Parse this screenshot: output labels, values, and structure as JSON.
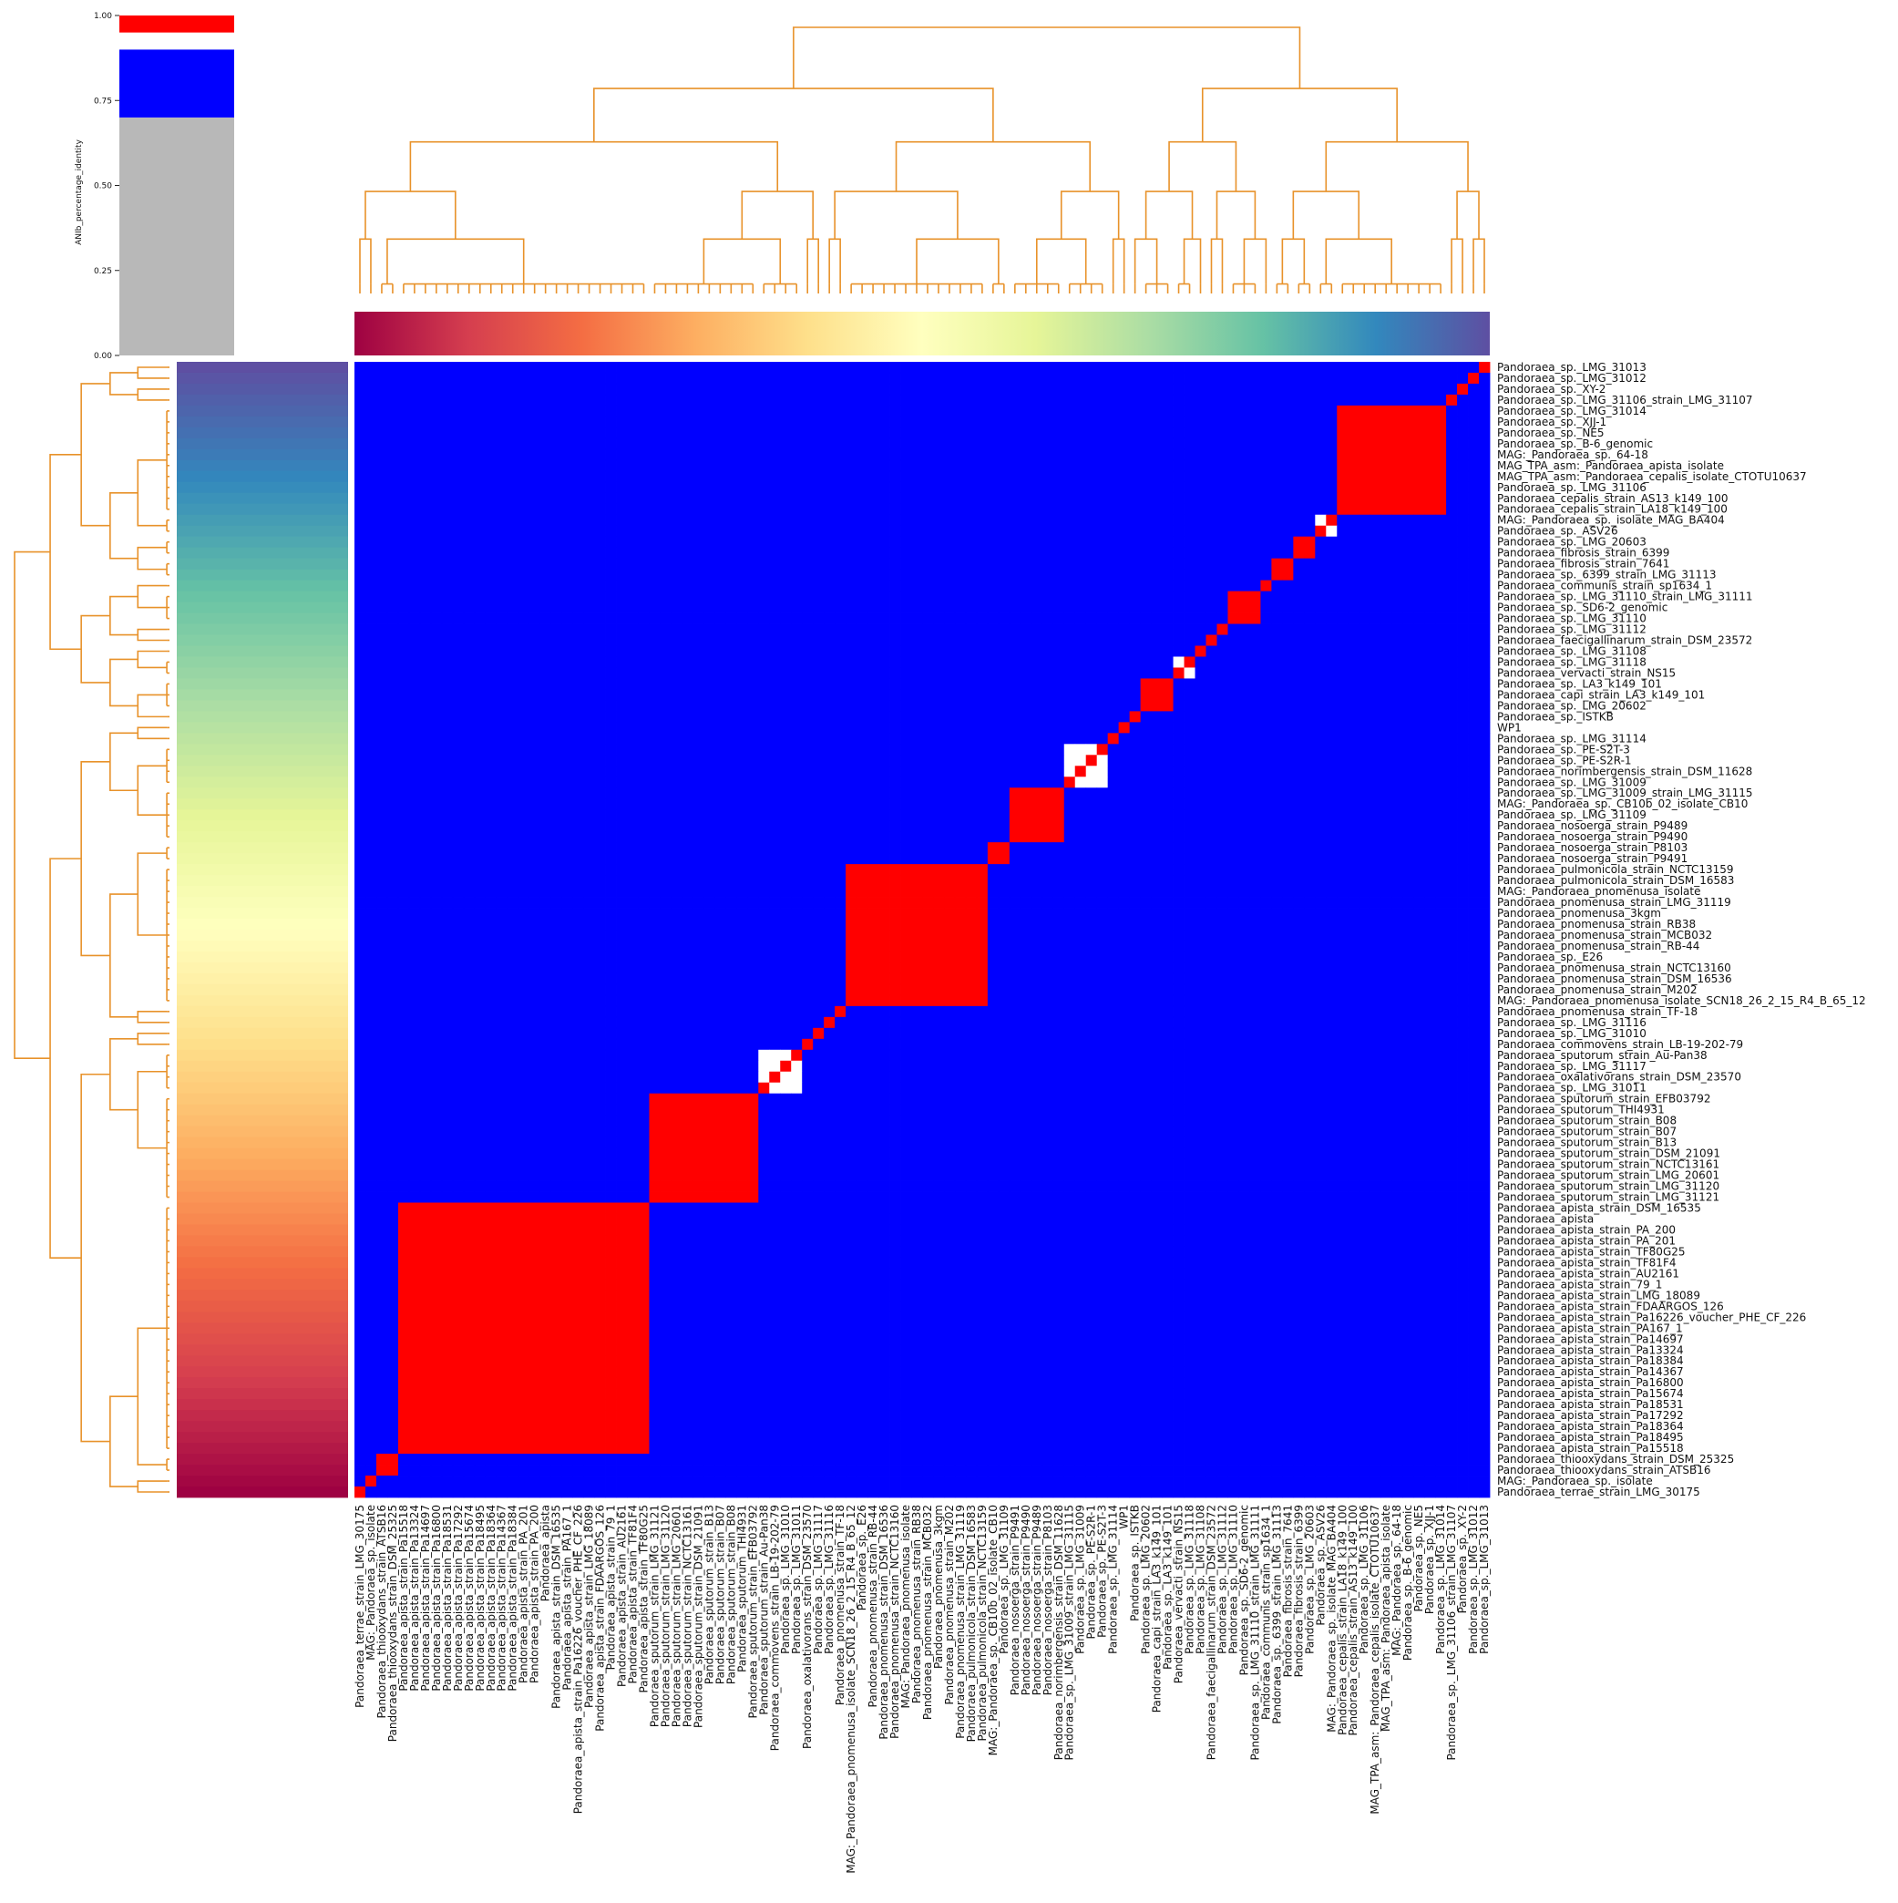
{
  "chart_data": {
    "type": "heatmap",
    "title": "",
    "colorbar": {
      "label": "ANIb_percentage_identity",
      "ticks": [
        "0.00",
        "0.25",
        "0.50",
        "0.75",
        "1.00"
      ],
      "tick_values": [
        0.0,
        0.25,
        0.5,
        0.75,
        1.0
      ],
      "segments": [
        {
          "from": 0.0,
          "to": 0.7,
          "color": "#b8b8b8"
        },
        {
          "from": 0.7,
          "to": 0.9,
          "color": "#0000ff"
        },
        {
          "from": 0.9,
          "to": 0.95,
          "color": "#ffffff"
        },
        {
          "from": 0.95,
          "to": 1.0,
          "color": "#ff0000"
        }
      ]
    },
    "dendrogram_color": "#e8922a",
    "col_labels": [
      "Pandoraea_terrae_strain_LMG_30175",
      "MAG:_Pandoraea_sp._isolate",
      "Pandoraea_thiooxydans_strain_ATSB16",
      "Pandoraea_thiooxydans_strain_DSM_25325",
      "Pandoraea_apista_strain_Pa15518",
      "Pandoraea_apista_strain_Pa13324",
      "Pandoraea_apista_strain_Pa14697",
      "Pandoraea_apista_strain_Pa16800",
      "Pandoraea_apista_strain_Pa18531",
      "Pandoraea_apista_strain_Pa17292",
      "Pandoraea_apista_strain_Pa15674",
      "Pandoraea_apista_strain_Pa18495",
      "Pandoraea_apista_strain_Pa18364",
      "Pandoraea_apista_strain_Pa14367",
      "Pandoraea_apista_strain_Pa18384",
      "Pandoraea_apista_strain_PA_201",
      "Pandoraea_apista_strain_PA_200",
      "Pandoraea_apista",
      "Pandoraea_apista_strain_DSM_16535",
      "Pandoraea_apista_strain_PA167_1",
      "Pandoraea_apista_strain_Pa16226_voucher_PHE_CF_226",
      "Pandoraea_apista_strain_LMG_18089",
      "Pandoraea_apista_strain_FDAARGOS_126",
      "Pandoraea_apista_strain_79_1",
      "Pandoraea_apista_strain_AU2161",
      "Pandoraea_apista_strain_TF81F4",
      "Pandoraea_apista_strain_TF80G25",
      "Pandoraea_sputorum_strain_LMG_31121",
      "Pandoraea_sputorum_strain_LMG_31120",
      "Pandoraea_sputorum_strain_LMG_20601",
      "Pandoraea_sputorum_strain_NCTC13161",
      "Pandoraea_sputorum_strain_DSM_21091",
      "Pandoraea_sputorum_strain_B13",
      "Pandoraea_sputorum_strain_B07",
      "Pandoraea_sputorum_strain_B08",
      "Pandoraea_sputorum_THI4931",
      "Pandoraea_sputorum_strain_EFB03792",
      "Pandoraea_sputorum_strain_Au-Pan38",
      "Pandoraea_commovens_strain_LB-19-202-79",
      "Pandoraea_sp._LMG_31010",
      "Pandoraea_sp._LMG_31011",
      "Pandoraea_oxalativorans_strain_DSM_23570",
      "Pandoraea_sp._LMG_31117",
      "Pandoraea_sp._LMG_31116",
      "Pandoraea_pnomenusa_strain_TF-18",
      "MAG:_Pandoraea_pnomenusa_isolate_SCN18_26_2_15_R4_B_65_12",
      "Pandoraea_sp._E26",
      "Pandoraea_pnomenusa_strain_RB-44",
      "Pandoraea_pnomenusa_strain_DSM_16536",
      "Pandoraea_pnomenusa_strain_NCTC13160",
      "MAG:_Pandoraea_pnomenusa_isolate",
      "Pandoraea_pnomenusa_strain_RB38",
      "Pandoraea_pnomenusa_strain_MCB032",
      "Pandoraea_pnomenusa_3kgm",
      "Pandoraea_pnomenusa_strain_M202",
      "Pandoraea_pnomenusa_strain_LMG_31119",
      "Pandoraea_pulmonicola_strain_DSM_16583",
      "Pandoraea_pulmonicola_strain_NCTC13159",
      "MAG:_Pandoraea_sp._CB10b_02_isolate_CB10",
      "Pandoraea_sp._LMG_31109",
      "Pandoraea_nosoerga_strain_P9491",
      "Pandoraea_nosoerga_strain_P9490",
      "Pandoraea_nosoerga_strain_P9489",
      "Pandoraea_nosoerga_strain_P8103",
      "Pandoraea_norimbergensis_strain_DSM_11628",
      "Pandoraea_sp._LMG_31009_strain_LMG_31115",
      "Pandoraea_sp._LMG_31009",
      "Pandoraea_sp._PE-S2R-1",
      "Pandoraea_sp._PE-S2T-3",
      "Pandoraea_sp._LMG_31114",
      "WP1",
      "Pandoraea_sp._ISTKB",
      "Pandoraea_sp._LMG_20602",
      "Pandoraea_capi_strain_LA3_k149_101",
      "Pandoraea_sp._LA3_k149_101",
      "Pandoraea_vervacti_strain_NS15",
      "Pandoraea_sp._LMG_31118",
      "Pandoraea_sp._LMG_31108",
      "Pandoraea_faecigallinarum_strain_DSM_23572",
      "Pandoraea_sp._LMG_31112",
      "Pandoraea_sp._LMG_31110",
      "Pandoraea_sp._SD6-2_genomic",
      "Pandoraea_sp._LMG_31110_strain_LMG_31111",
      "Pandoraea_communis_strain_sp1634_1",
      "Pandoraea_sp._6399_strain_LMG_31113",
      "Pandoraea_fibrosis_strain_7641",
      "Pandoraea_fibrosis_strain_6399",
      "Pandoraea_sp._LMG_20603",
      "Pandoraea_sp._ASV26",
      "MAG:_Pandoraea_sp._isolate_MAG_BA404",
      "Pandoraea_cepalis_strain_LA18_k149_100",
      "Pandoraea_cepalis_strain_AS13_k149_100",
      "Pandoraea_sp._LMG_31106",
      "MAG_TPA_asm:_Pandoraea_cepalis_isolate_CTOTU10637",
      "MAG_TPA_asm:_Pandoraea_apista_isolate",
      "MAG:_Pandoraea_sp._64-18",
      "Pandoraea_sp._B-6_genomic",
      "Pandoraea_sp._NE5",
      "Pandoraea_sp._XJJ-1",
      "Pandoraea_sp._LMG_31014",
      "Pandoraea_sp._LMG_31106_strain_LMG_31107",
      "Pandoraea_sp._XY-2",
      "Pandoraea_sp._LMG_31012",
      "Pandoraea_sp._LMG_31013"
    ],
    "row_labels": [
      "Pandoraea_sp._LMG_31013",
      "Pandoraea_sp._LMG_31012",
      "Pandoraea_sp._XY-2",
      "Pandoraea_sp._LMG_31106_strain_LMG_31107",
      "Pandoraea_sp._LMG_31014",
      "Pandoraea_sp._XJJ-1",
      "Pandoraea_sp._NE5",
      "Pandoraea_sp._B-6_genomic",
      "MAG:_Pandoraea_sp._64-18",
      "MAG_TPA_asm:_Pandoraea_apista_isolate",
      "MAG_TPA_asm:_Pandoraea_cepalis_isolate_CTOTU10637",
      "Pandoraea_sp._LMG_31106",
      "Pandoraea_cepalis_strain_AS13_k149_100",
      "Pandoraea_cepalis_strain_LA18_k149_100",
      "MAG:_Pandoraea_sp._isolate_MAG_BA404",
      "Pandoraea_sp._ASV26",
      "Pandoraea_sp._LMG_20603",
      "Pandoraea_fibrosis_strain_6399",
      "Pandoraea_fibrosis_strain_7641",
      "Pandoraea_sp._6399_strain_LMG_31113",
      "Pandoraea_communis_strain_sp1634_1",
      "Pandoraea_sp._LMG_31110_strain_LMG_31111",
      "Pandoraea_sp._SD6-2_genomic",
      "Pandoraea_sp._LMG_31110",
      "Pandoraea_sp._LMG_31112",
      "Pandoraea_faecigallinarum_strain_DSM_23572",
      "Pandoraea_sp._LMG_31108",
      "Pandoraea_sp._LMG_31118",
      "Pandoraea_vervacti_strain_NS15",
      "Pandoraea_sp._LA3_k149_101",
      "Pandoraea_capi_strain_LA3_k149_101",
      "Pandoraea_sp._LMG_20602",
      "Pandoraea_sp._ISTKB",
      "WP1",
      "Pandoraea_sp._LMG_31114",
      "Pandoraea_sp._PE-S2T-3",
      "Pandoraea_sp._PE-S2R-1",
      "Pandoraea_norimbergensis_strain_DSM_11628",
      "Pandoraea_sp._LMG_31009",
      "Pandoraea_sp._LMG_31009_strain_LMG_31115",
      "MAG:_Pandoraea_sp._CB10b_02_isolate_CB10",
      "Pandoraea_sp._LMG_31109",
      "Pandoraea_nosoerga_strain_P9489",
      "Pandoraea_nosoerga_strain_P9490",
      "Pandoraea_nosoerga_strain_P8103",
      "Pandoraea_nosoerga_strain_P9491",
      "Pandoraea_pulmonicola_strain_NCTC13159",
      "Pandoraea_pulmonicola_strain_DSM_16583",
      "MAG:_Pandoraea_pnomenusa_isolate",
      "Pandoraea_pnomenusa_strain_LMG_31119",
      "Pandoraea_pnomenusa_3kgm",
      "Pandoraea_pnomenusa_strain_RB38",
      "Pandoraea_pnomenusa_strain_MCB032",
      "Pandoraea_pnomenusa_strain_RB-44",
      "Pandoraea_sp._E26",
      "Pandoraea_pnomenusa_strain_NCTC13160",
      "Pandoraea_pnomenusa_strain_DSM_16536",
      "Pandoraea_pnomenusa_strain_M202",
      "MAG:_Pandoraea_pnomenusa_isolate_SCN18_26_2_15_R4_B_65_12",
      "Pandoraea_pnomenusa_strain_TF-18",
      "Pandoraea_sp._LMG_31116",
      "Pandoraea_sp._LMG_31010",
      "Pandoraea_commovens_strain_LB-19-202-79",
      "Pandoraea_sputorum_strain_Au-Pan38",
      "Pandoraea_sp._LMG_31117",
      "Pandoraea_oxalativorans_strain_DSM_23570",
      "Pandoraea_sp._LMG_31011",
      "Pandoraea_sputorum_strain_EFB03792",
      "Pandoraea_sputorum_THI4931",
      "Pandoraea_sputorum_strain_B08",
      "Pandoraea_sputorum_strain_B07",
      "Pandoraea_sputorum_strain_B13",
      "Pandoraea_sputorum_strain_DSM_21091",
      "Pandoraea_sputorum_strain_NCTC13161",
      "Pandoraea_sputorum_strain_LMG_20601",
      "Pandoraea_sputorum_strain_LMG_31120",
      "Pandoraea_sputorum_strain_LMG_31121",
      "Pandoraea_apista_strain_DSM_16535",
      "Pandoraea_apista",
      "Pandoraea_apista_strain_PA_200",
      "Pandoraea_apista_strain_PA_201",
      "Pandoraea_apista_strain_TF80G25",
      "Pandoraea_apista_strain_TF81F4",
      "Pandoraea_apista_strain_AU2161",
      "Pandoraea_apista_strain_79_1",
      "Pandoraea_apista_strain_LMG_18089",
      "Pandoraea_apista_strain_FDAARGOS_126",
      "Pandoraea_apista_strain_Pa16226_voucher_PHE_CF_226",
      "Pandoraea_apista_strain_PA167_1",
      "Pandoraea_apista_strain_Pa14697",
      "Pandoraea_apista_strain_Pa13324",
      "Pandoraea_apista_strain_Pa18384",
      "Pandoraea_apista_strain_Pa14367",
      "Pandoraea_apista_strain_Pa16800",
      "Pandoraea_apista_strain_Pa15674",
      "Pandoraea_apista_strain_Pa18531",
      "Pandoraea_apista_strain_Pa17292",
      "Pandoraea_apista_strain_Pa18364",
      "Pandoraea_apista_strain_Pa18495",
      "Pandoraea_apista_strain_Pa15518",
      "Pandoraea_thiooxydans_strain_DSM_25325",
      "Pandoraea_thiooxydans_strain_ATSB16",
      "MAG:_Pandoraea_sp._isolate",
      "Pandoraea_terrae_strain_LMG_30175"
    ],
    "blocks": [
      {
        "start": 4,
        "end": 26,
        "value": 0.985
      },
      {
        "start": 27,
        "end": 36,
        "value": 0.985
      },
      {
        "start": 37,
        "end": 40,
        "value": 0.93
      },
      {
        "start": 45,
        "end": 57,
        "value": 0.98
      },
      {
        "start": 58,
        "end": 59,
        "value": 0.98
      },
      {
        "start": 60,
        "end": 64,
        "value": 0.985
      },
      {
        "start": 65,
        "end": 68,
        "value": 0.935
      },
      {
        "start": 72,
        "end": 74,
        "value": 0.955
      },
      {
        "start": 75,
        "end": 76,
        "value": 0.93
      },
      {
        "start": 80,
        "end": 82,
        "value": 0.96
      },
      {
        "start": 84,
        "end": 85,
        "value": 0.965
      },
      {
        "start": 86,
        "end": 87,
        "value": 0.985
      },
      {
        "start": 88,
        "end": 89,
        "value": 0.92
      },
      {
        "start": 90,
        "end": 99,
        "value": 0.96
      },
      {
        "start": 2,
        "end": 3,
        "value": 0.985
      }
    ],
    "off_diagonal_value": 0.8,
    "diagonal_value": 1.0
  }
}
